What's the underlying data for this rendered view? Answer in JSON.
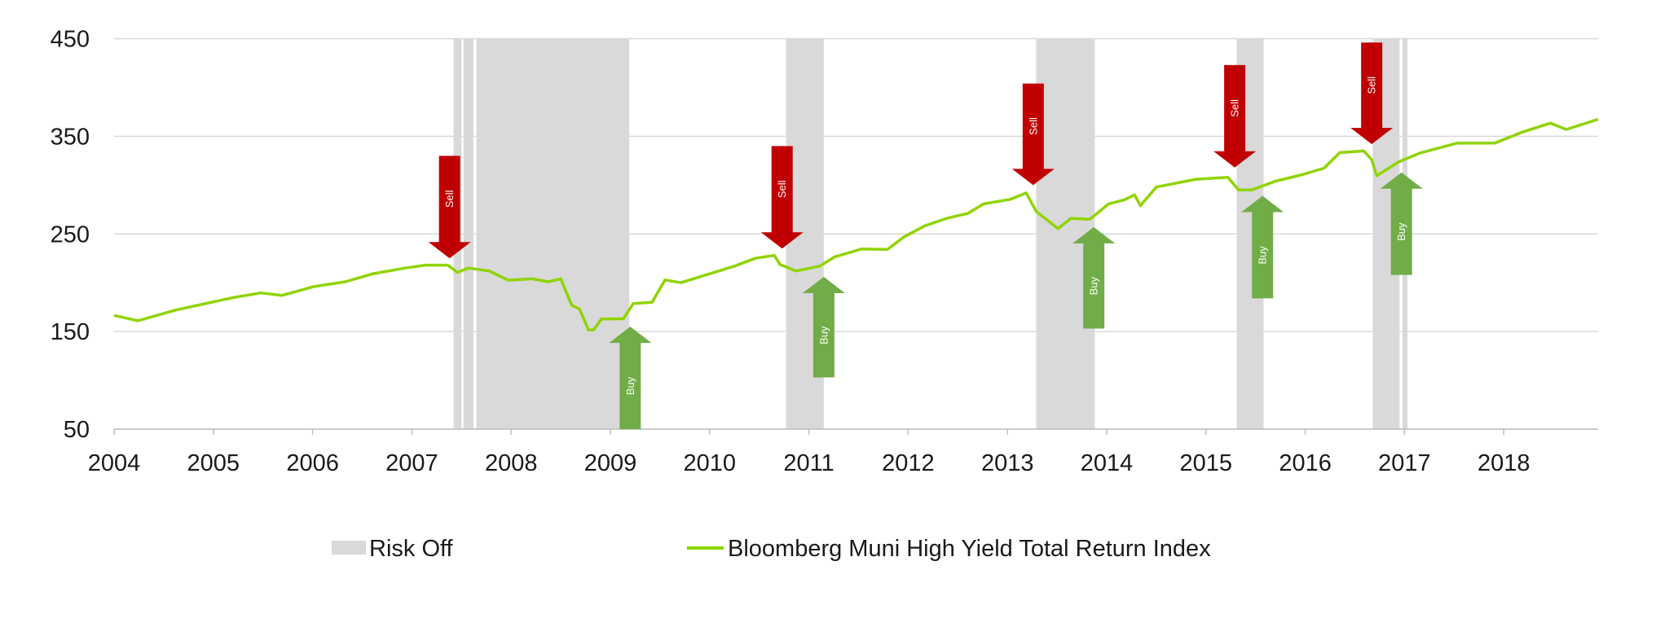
{
  "chart_data": {
    "type": "line",
    "title": "",
    "xlabel": "",
    "ylabel": "",
    "xlim": [
      2004,
      2018.95
    ],
    "ylim": [
      50,
      450
    ],
    "yticks": [
      50,
      150,
      250,
      350,
      450
    ],
    "xticks": [
      "2004",
      "2005",
      "2006",
      "2007",
      "2008",
      "2009",
      "2010",
      "2011",
      "2012",
      "2013",
      "2014",
      "2015",
      "2016",
      "2017",
      "2018"
    ],
    "grid": "horizontal",
    "legend_position": "bottom",
    "colors": {
      "line": "#8fd400",
      "risk_off": "#d9d9d9",
      "sell": "#c00000",
      "buy": "#70ad47",
      "grid": "#d9d9d9"
    },
    "legend": {
      "risk_off": "Risk Off",
      "series": "Bloomberg Muni High Yield Total Return Index"
    },
    "risk_off_periods": [
      [
        2007.42,
        2007.5
      ],
      [
        2007.52,
        2007.62
      ],
      [
        2007.65,
        2009.19
      ],
      [
        2010.77,
        2011.15
      ],
      [
        2013.29,
        2013.88
      ],
      [
        2015.31,
        2015.58
      ],
      [
        2016.68,
        2016.95
      ],
      [
        2016.98,
        2017.03
      ]
    ],
    "series": [
      {
        "name": "Bloomberg Muni High Yield Total Return Index",
        "x": [
          2004.0,
          2004.24,
          2004.62,
          2005.0,
          2005.21,
          2005.48,
          2005.69,
          2006.01,
          2006.33,
          2006.6,
          2006.93,
          2007.14,
          2007.36,
          2007.46,
          2007.57,
          2007.78,
          2007.97,
          2008.21,
          2008.37,
          2008.5,
          2008.61,
          2008.69,
          2008.78,
          2008.83,
          2008.91,
          2009.13,
          2009.23,
          2009.42,
          2009.55,
          2009.71,
          2009.93,
          2010.25,
          2010.46,
          2010.65,
          2010.71,
          2010.87,
          2011.11,
          2011.26,
          2011.53,
          2011.79,
          2011.96,
          2012.17,
          2012.39,
          2012.6,
          2012.76,
          2013.03,
          2013.19,
          2013.29,
          2013.51,
          2013.64,
          2013.83,
          2014.02,
          2014.18,
          2014.28,
          2014.34,
          2014.5,
          2014.9,
          2015.22,
          2015.33,
          2015.46,
          2015.7,
          2015.97,
          2016.19,
          2016.35,
          2016.59,
          2016.67,
          2016.72,
          2016.94,
          2017.16,
          2017.53,
          2017.91,
          2018.18,
          2018.47,
          2018.63,
          2018.95
        ],
        "values": [
          166.5,
          161,
          172,
          180.4,
          185,
          189.6,
          187,
          196,
          201,
          209,
          215,
          218,
          218,
          210.6,
          215,
          212,
          202.6,
          204,
          201,
          204,
          177,
          173,
          151.5,
          151.5,
          162.8,
          163,
          178.6,
          180,
          202.8,
          200,
          207,
          217,
          225,
          228,
          218.6,
          212,
          217,
          226.5,
          234.5,
          234,
          247,
          258.4,
          266,
          271,
          280.7,
          285.4,
          292,
          273,
          255.4,
          266,
          265,
          280.7,
          285,
          290,
          279,
          298,
          306,
          308,
          295,
          295,
          304,
          310.7,
          317.4,
          333.3,
          335,
          326,
          309.6,
          323.7,
          333,
          343,
          343,
          354,
          363.5,
          357,
          367.4
        ]
      }
    ],
    "annotations": [
      {
        "label": "Sell",
        "direction": "down",
        "x": 2007.38,
        "from": 330,
        "to": 225
      },
      {
        "label": "Buy",
        "direction": "up",
        "x": 2009.2,
        "from": 50,
        "to": 155
      },
      {
        "label": "Sell",
        "direction": "down",
        "x": 2010.73,
        "from": 340,
        "to": 235
      },
      {
        "label": "Buy",
        "direction": "up",
        "x": 2011.15,
        "from": 103,
        "to": 206
      },
      {
        "label": "Sell",
        "direction": "down",
        "x": 2013.26,
        "from": 404,
        "to": 300
      },
      {
        "label": "Buy",
        "direction": "up",
        "x": 2013.87,
        "from": 153,
        "to": 257
      },
      {
        "label": "Sell",
        "direction": "down",
        "x": 2015.29,
        "from": 423,
        "to": 318
      },
      {
        "label": "Buy",
        "direction": "up",
        "x": 2015.57,
        "from": 184,
        "to": 289
      },
      {
        "label": "Sell",
        "direction": "down",
        "x": 2016.67,
        "from": 446,
        "to": 342
      },
      {
        "label": "Buy",
        "direction": "up",
        "x": 2016.97,
        "from": 208,
        "to": 313
      }
    ]
  }
}
